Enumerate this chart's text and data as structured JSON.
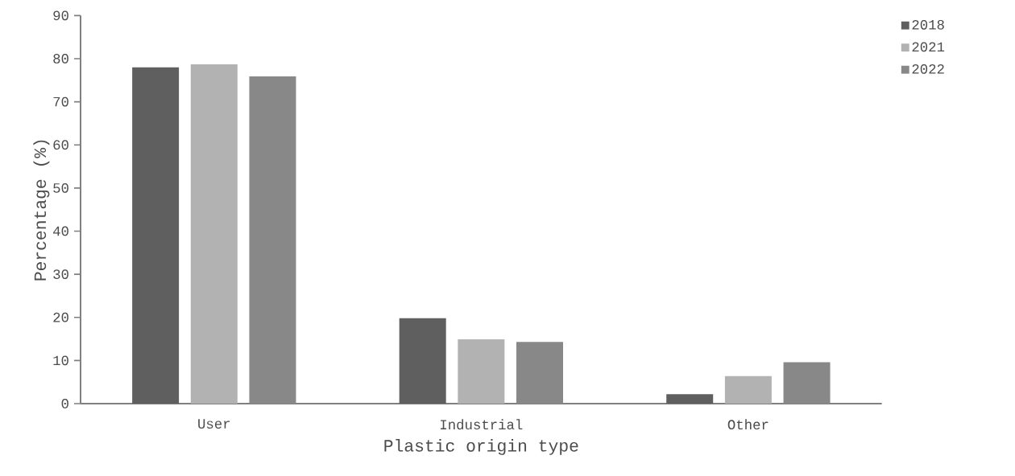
{
  "chart_data": {
    "type": "bar",
    "xlabel": "Plastic origin type",
    "ylabel": "Percentage (%)",
    "categories": [
      "User",
      "Industrial",
      "Other"
    ],
    "series": [
      {
        "name": "2018",
        "color": "#5f5f5f",
        "values": [
          78.0,
          19.8,
          2.2
        ]
      },
      {
        "name": "2021",
        "color": "#b2b2b2",
        "values": [
          78.7,
          14.9,
          6.4
        ]
      },
      {
        "name": "2022",
        "color": "#888888",
        "values": [
          75.9,
          14.3,
          9.6
        ]
      }
    ],
    "ylim": [
      0,
      90
    ],
    "yticks": [
      0,
      10,
      20,
      30,
      40,
      50,
      60,
      70,
      80,
      90
    ],
    "grid": false,
    "legend": "top right"
  }
}
